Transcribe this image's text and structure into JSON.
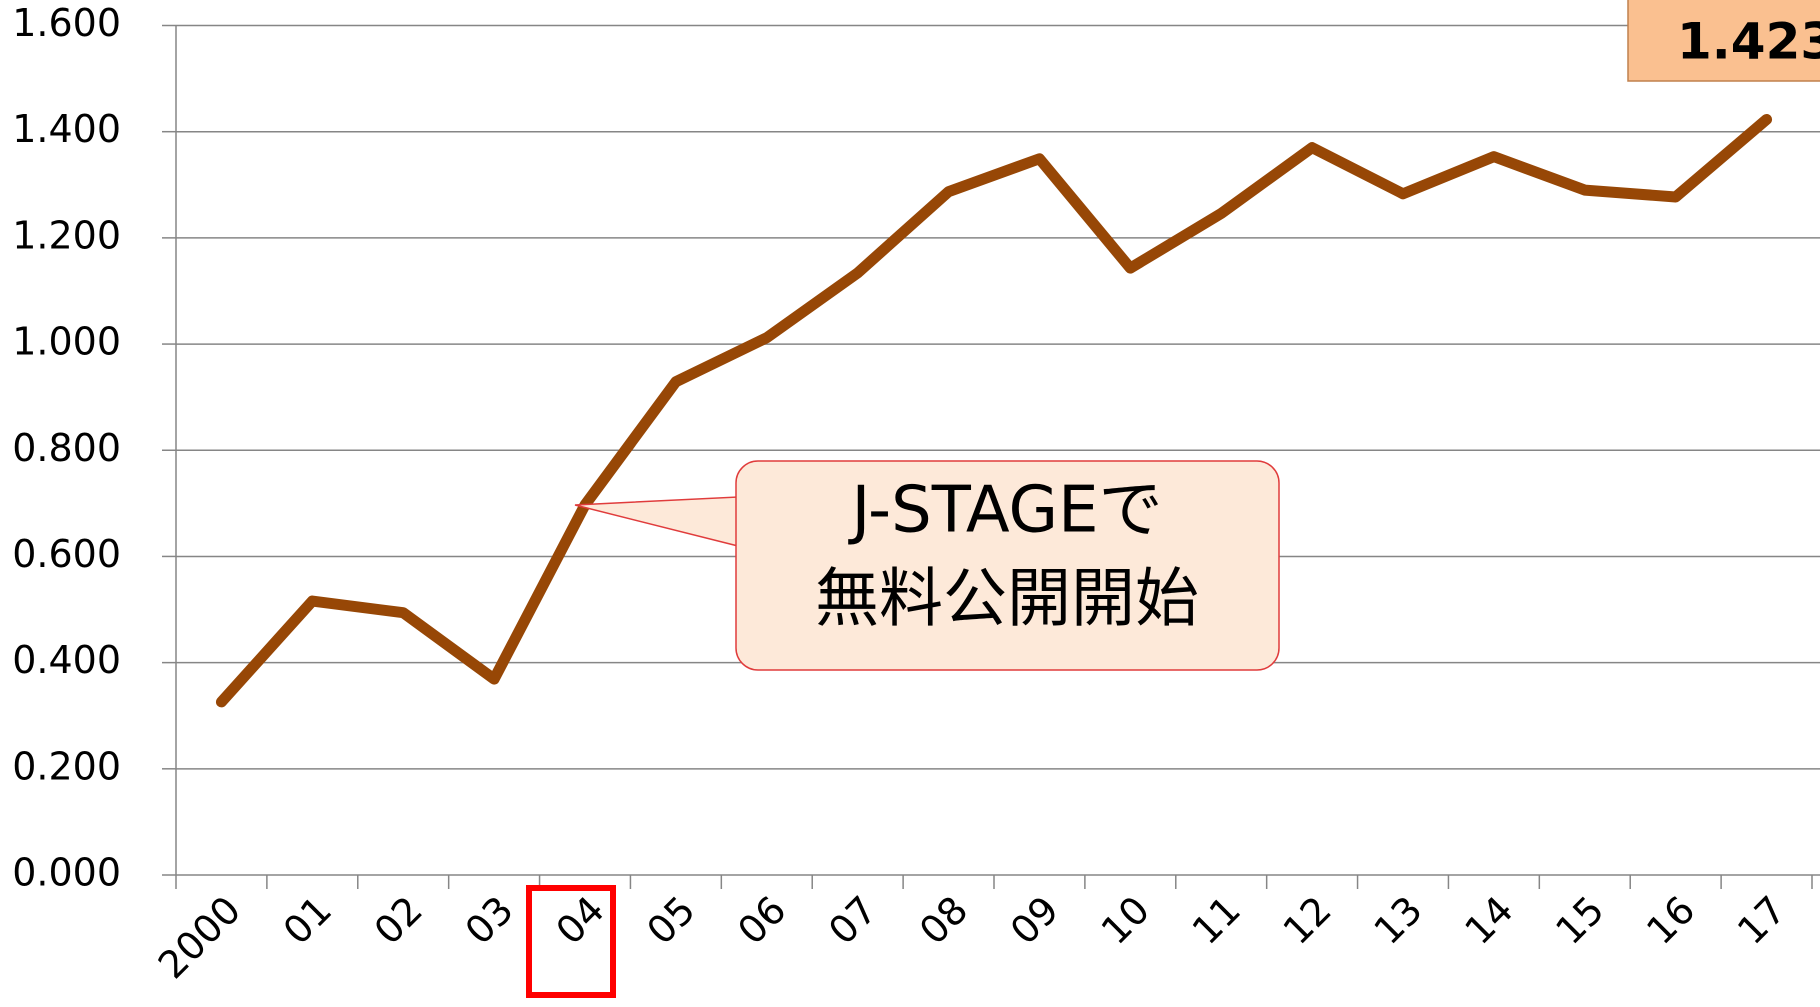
{
  "chart_data": {
    "type": "line",
    "categories": [
      "2000",
      "01",
      "02",
      "03",
      "04",
      "05",
      "06",
      "07",
      "08",
      "09",
      "10",
      "11",
      "12",
      "13",
      "14",
      "15",
      "16",
      "17"
    ],
    "series": [
      {
        "color": "#974706",
        "values": [
          0.326,
          0.516,
          0.494,
          0.369,
          0.697,
          0.929,
          1.012,
          1.134,
          1.287,
          1.349,
          1.143,
          1.246,
          1.37,
          1.283,
          1.353,
          1.29,
          1.277,
          1.423
        ]
      }
    ],
    "ylim": [
      0,
      1.6
    ],
    "yticks": [
      {
        "value": 0,
        "label": "0.000"
      },
      {
        "value": 0.2,
        "label": "0.200"
      },
      {
        "value": 0.4,
        "label": "0.400"
      },
      {
        "value": 0.6,
        "label": "0.600"
      },
      {
        "value": 0.8,
        "label": "0.800"
      },
      {
        "value": 1.0,
        "label": "1.000"
      },
      {
        "value": 1.2,
        "label": "1.200"
      },
      {
        "value": 1.4,
        "label": "1.400"
      },
      {
        "value": 1.6,
        "label": "1.600"
      }
    ],
    "grid": true,
    "annotation": [
      "J-STAGEで",
      "無料公開開始"
    ]
  }
}
